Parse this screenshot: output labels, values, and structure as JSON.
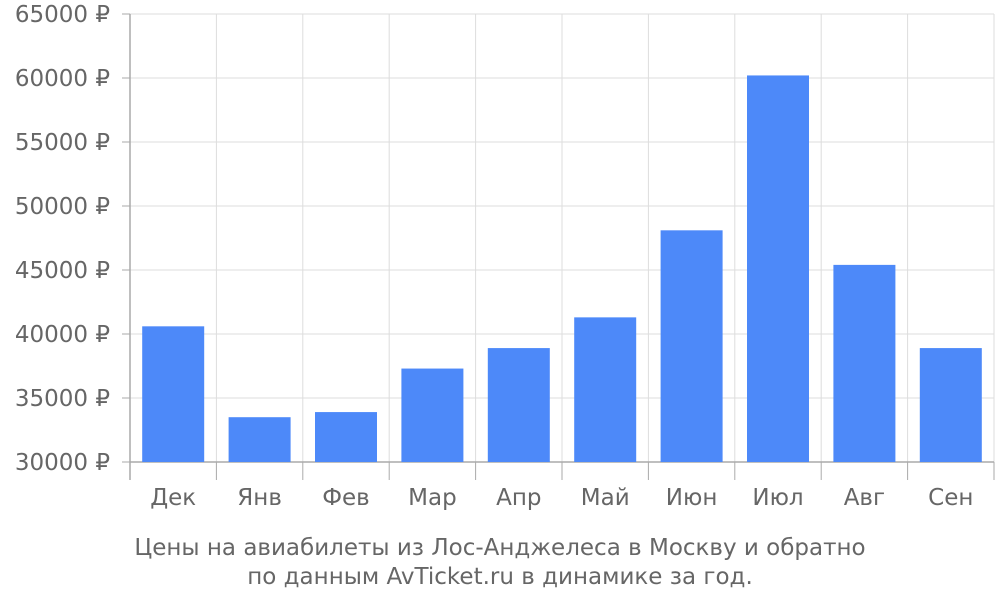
{
  "chart_data": {
    "type": "bar",
    "categories": [
      "Дек",
      "Янв",
      "Фев",
      "Мар",
      "Апр",
      "Май",
      "Июн",
      "Июл",
      "Авг",
      "Сен"
    ],
    "values": [
      40600,
      33500,
      33900,
      37300,
      38900,
      41300,
      48100,
      60200,
      45400,
      38900
    ],
    "ylim": [
      30000,
      65000
    ],
    "yticks": [
      30000,
      35000,
      40000,
      45000,
      50000,
      55000,
      60000,
      65000
    ],
    "ytick_labels": [
      "30000 ₽",
      "35000 ₽",
      "40000 ₽",
      "45000 ₽",
      "50000 ₽",
      "55000 ₽",
      "60000 ₽",
      "65000 ₽"
    ],
    "grid": true,
    "bar_color": "#4d89f9",
    "grid_color": "#dddddd",
    "text_color": "#666666"
  },
  "caption": {
    "line1": "Цены на авиабилеты из Лос-Анджелеса в Москву и обратно",
    "line2": "по данным AvTicket.ru в динамике за год."
  }
}
